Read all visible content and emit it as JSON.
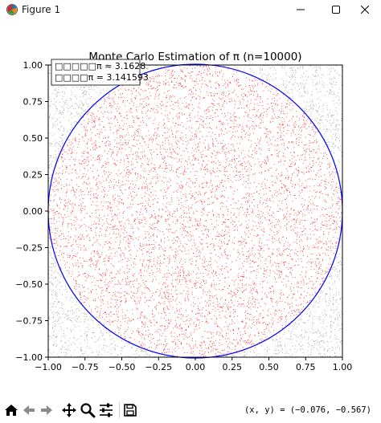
{
  "window": {
    "title": "Figure 1",
    "icon": "matplotlib-figure-icon",
    "controls": [
      "minimize-icon",
      "maximize-icon",
      "close-icon"
    ]
  },
  "toolbar": {
    "buttons": [
      {
        "name": "home-button",
        "icon": "home-icon"
      },
      {
        "name": "back-button",
        "icon": "arrow-left-icon"
      },
      {
        "name": "forward-button",
        "icon": "arrow-right-icon"
      },
      {
        "name": "pan-button",
        "icon": "move-icon"
      },
      {
        "name": "zoom-button",
        "icon": "magnifier-icon"
      },
      {
        "name": "configure-subplots-button",
        "icon": "sliders-icon"
      },
      {
        "name": "save-button",
        "icon": "floppy-disk-icon"
      }
    ],
    "coords": "(x, y) = (−0.076, −0.567)"
  },
  "chart_data": {
    "type": "scatter",
    "title": "Monte Carlo Estimation of π (n=10000)",
    "xlim": [
      -1.0,
      1.0
    ],
    "ylim": [
      -1.0,
      1.0
    ],
    "xticks": [
      "−1.00",
      "−0.75",
      "−0.50",
      "−0.25",
      "0.00",
      "0.25",
      "0.50",
      "0.75",
      "1.00"
    ],
    "yticks": [
      "1.00",
      "0.75",
      "0.50",
      "0.25",
      "0.00",
      "−0.25",
      "−0.50",
      "−0.75",
      "−1.00"
    ],
    "n": 10000,
    "inside_color": "#ff0000",
    "outside_color": "#808080",
    "circle": {
      "center": [
        0,
        0
      ],
      "radius": 1,
      "color": "#0000ff"
    },
    "annotation_lines": [
      "□□□□□π ≈ 3.1628",
      "□□□□π = 3.141593"
    ],
    "estimated_pi": 3.1628,
    "true_pi": 3.141593,
    "grid": false,
    "legend": "none",
    "annotation_position": "top-left"
  }
}
